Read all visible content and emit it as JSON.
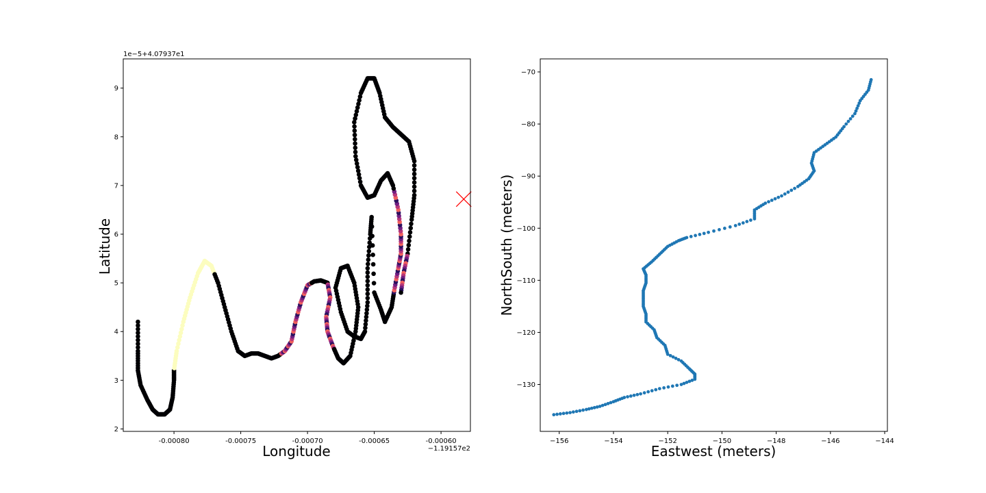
{
  "chart_data": [
    {
      "type": "scatter",
      "xlabel": "Longitude",
      "ylabel": "Latitude",
      "x_offset_text": "−1.19157e2",
      "y_offset_text": "1e−5+4.07937e1",
      "x_ticks": [
        "-0.00080",
        "-0.00075",
        "-0.00070",
        "-0.00065",
        "-0.00060"
      ],
      "y_ticks": [
        "2",
        "3",
        "4",
        "5",
        "6",
        "7",
        "8",
        "9"
      ],
      "xlim": [
        -0.000838,
        -0.000578
      ],
      "ylim": [
        1.95,
        9.6
      ],
      "colormap": "magma",
      "marker_color_dark": "#000004",
      "marker_color_light": "#fcfdbf",
      "series": [
        {
          "points": [
            [
              -0.000827,
              4.2
            ],
            [
              -0.000827,
              3.6
            ],
            [
              -0.000827,
              3.2
            ],
            [
              -0.000825,
              2.9
            ],
            [
              -0.00082,
              2.6
            ],
            [
              -0.000816,
              2.4
            ],
            [
              -0.000812,
              2.3
            ],
            [
              -0.000807,
              2.3
            ],
            [
              -0.000803,
              2.4
            ],
            [
              -0.000801,
              2.65
            ],
            [
              -0.0008,
              3.0
            ],
            [
              -0.0008,
              3.2
            ],
            [
              -0.000798,
              3.6
            ],
            [
              -0.000793,
              4.2
            ],
            [
              -0.000788,
              4.7
            ],
            [
              -0.000782,
              5.2
            ],
            [
              -0.000777,
              5.45
            ],
            [
              -0.000772,
              5.35
            ],
            [
              -0.000767,
              5.0
            ],
            [
              -0.000762,
              4.5
            ],
            [
              -0.000757,
              4.0
            ],
            [
              -0.000752,
              3.6
            ],
            [
              -0.000747,
              3.5
            ],
            [
              -0.000742,
              3.55
            ],
            [
              -0.000737,
              3.55
            ],
            [
              -0.000732,
              3.5
            ],
            [
              -0.000727,
              3.45
            ],
            [
              -0.000722,
              3.5
            ],
            [
              -0.000717,
              3.6
            ],
            [
              -0.000712,
              3.8
            ],
            [
              -0.000709,
              4.2
            ],
            [
              -0.000705,
              4.6
            ],
            [
              -0.0007,
              4.95
            ],
            [
              -0.000695,
              5.03
            ],
            [
              -0.00069,
              5.05
            ],
            [
              -0.000685,
              5.0
            ],
            [
              -0.000683,
              4.7
            ],
            [
              -0.000686,
              4.3
            ],
            [
              -0.000685,
              4.0
            ],
            [
              -0.000681,
              3.7
            ],
            [
              -0.000677,
              3.45
            ],
            [
              -0.000673,
              3.35
            ],
            [
              -0.000668,
              3.5
            ],
            [
              -0.000664,
              4.0
            ],
            [
              -0.000662,
              4.5
            ],
            [
              -0.000665,
              5.0
            ],
            [
              -0.00067,
              5.35
            ],
            [
              -0.000675,
              5.3
            ],
            [
              -0.000679,
              4.9
            ],
            [
              -0.000675,
              4.4
            ],
            [
              -0.00067,
              4.0
            ],
            [
              -0.000665,
              3.9
            ],
            [
              -0.00066,
              3.85
            ],
            [
              -0.000657,
              4.0
            ],
            [
              -0.000655,
              4.6
            ],
            [
              -0.000655,
              5.3
            ],
            [
              -0.000653,
              6.0
            ],
            [
              -0.000652,
              6.35
            ],
            [
              -0.00065,
              4.8
            ],
            [
              -0.000645,
              4.45
            ],
            [
              -0.000642,
              4.2
            ],
            [
              -0.000637,
              4.5
            ],
            [
              -0.000635,
              4.85
            ],
            [
              -0.000632,
              5.3
            ],
            [
              -0.00063,
              5.6
            ],
            [
              -0.00063,
              6.0
            ],
            [
              -0.000632,
              6.5
            ],
            [
              -0.000636,
              7.0
            ],
            [
              -0.00064,
              7.25
            ],
            [
              -0.000645,
              7.1
            ],
            [
              -0.00065,
              6.8
            ],
            [
              -0.000655,
              6.75
            ],
            [
              -0.00066,
              7.0
            ],
            [
              -0.000664,
              7.6
            ],
            [
              -0.000665,
              8.3
            ],
            [
              -0.00066,
              8.9
            ],
            [
              -0.000655,
              9.2
            ],
            [
              -0.00065,
              9.2
            ],
            [
              -0.000646,
              8.9
            ],
            [
              -0.000642,
              8.4
            ],
            [
              -0.000636,
              8.2
            ],
            [
              -0.00063,
              8.05
            ],
            [
              -0.000624,
              7.9
            ],
            [
              -0.00062,
              7.5
            ],
            [
              -0.00062,
              6.8
            ],
            [
              -0.000622,
              6.3
            ],
            [
              -0.000625,
              5.6
            ],
            [
              -0.000628,
              5.2
            ],
            [
              -0.00063,
              4.8
            ]
          ]
        }
      ],
      "marker_annotation": {
        "symbol": "×",
        "color": "#ff0000",
        "x": -0.000583,
        "y": 6.72
      }
    },
    {
      "type": "scatter",
      "xlabel": "Eastwest (meters)",
      "ylabel": "NorthSouth (meters)",
      "x_ticks": [
        "−156",
        "−154",
        "−152",
        "−150",
        "−148",
        "−146",
        "−144"
      ],
      "y_ticks": [
        "−130",
        "−120",
        "−110",
        "−100",
        "−90",
        "−80",
        "−70"
      ],
      "xlim": [
        -156.7,
        -143.9
      ],
      "ylim": [
        -139.0,
        -67.5
      ],
      "color": "#1f77b4",
      "series": [
        {
          "points": [
            [
              -156.2,
              -135.8
            ],
            [
              -155.6,
              -135.4
            ],
            [
              -155.0,
              -134.8
            ],
            [
              -154.5,
              -134.2
            ],
            [
              -154.0,
              -133.3
            ],
            [
              -153.6,
              -132.5
            ],
            [
              -153.0,
              -131.8
            ],
            [
              -152.3,
              -130.8
            ],
            [
              -151.5,
              -130.0
            ],
            [
              -151.0,
              -129.0
            ],
            [
              -151.0,
              -128.0
            ],
            [
              -151.2,
              -127.0
            ],
            [
              -151.5,
              -125.5
            ],
            [
              -152.0,
              -124.2
            ],
            [
              -152.1,
              -122.5
            ],
            [
              -152.4,
              -121.0
            ],
            [
              -152.5,
              -119.5
            ],
            [
              -152.8,
              -118.0
            ],
            [
              -152.8,
              -116.5
            ],
            [
              -152.9,
              -115.0
            ],
            [
              -152.9,
              -113.5
            ],
            [
              -152.9,
              -112.0
            ],
            [
              -152.8,
              -110.5
            ],
            [
              -152.8,
              -109.0
            ],
            [
              -152.9,
              -107.8
            ],
            [
              -152.6,
              -106.5
            ],
            [
              -152.3,
              -105.0
            ],
            [
              -152.0,
              -103.5
            ],
            [
              -151.6,
              -102.4
            ],
            [
              -151.3,
              -101.8
            ],
            [
              -150.5,
              -100.8
            ],
            [
              -149.5,
              -99.5
            ],
            [
              -148.8,
              -98.2
            ],
            [
              -148.8,
              -96.5
            ],
            [
              -148.4,
              -95.2
            ],
            [
              -147.8,
              -93.8
            ],
            [
              -147.2,
              -92.0
            ],
            [
              -146.8,
              -90.5
            ],
            [
              -146.6,
              -89.0
            ],
            [
              -146.7,
              -87.5
            ],
            [
              -146.6,
              -85.5
            ],
            [
              -146.2,
              -84.0
            ],
            [
              -145.8,
              -82.5
            ],
            [
              -145.5,
              -80.5
            ],
            [
              -145.1,
              -78.0
            ],
            [
              -144.9,
              -75.5
            ],
            [
              -144.6,
              -73.5
            ],
            [
              -144.5,
              -71.5
            ]
          ]
        }
      ]
    }
  ]
}
